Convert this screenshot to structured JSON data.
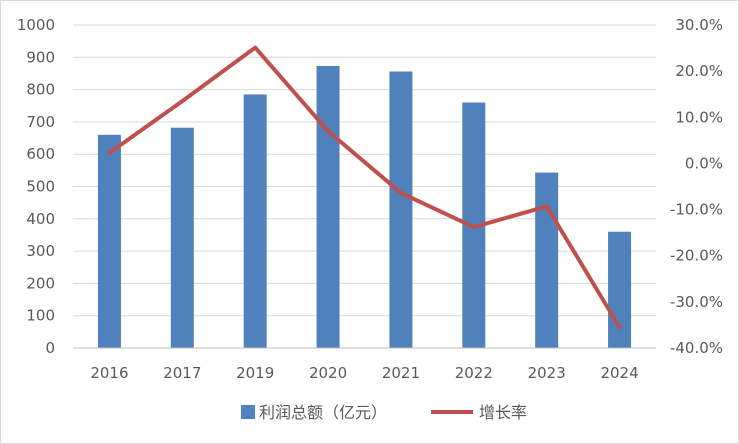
{
  "chart_data": {
    "type": "bar",
    "title": "",
    "xlabel": "",
    "ylabel": "",
    "y2label": "",
    "categories": [
      "2016",
      "2017",
      "2019",
      "2020",
      "2021",
      "2022",
      "2023",
      "2024"
    ],
    "series": [
      {
        "name": "利润总额（亿元）",
        "type": "bar",
        "axis": "left",
        "color": "#4f81bd",
        "values": [
          660,
          682,
          785,
          873,
          856,
          760,
          543,
          360
        ]
      },
      {
        "name": "增长率",
        "type": "line",
        "axis": "right",
        "color": "#c0504d",
        "values": [
          2.3,
          13.5,
          25.1,
          7.0,
          -6.4,
          -13.8,
          -9.3,
          -35.5
        ]
      }
    ],
    "ylim": [
      0,
      1000
    ],
    "yticks": [
      "0",
      "100",
      "200",
      "300",
      "400",
      "500",
      "600",
      "700",
      "800",
      "900",
      "1000"
    ],
    "y2lim": [
      -40,
      30
    ],
    "y2ticks": [
      "-40.0%",
      "-30.0%",
      "-20.0%",
      "-10.0%",
      "0.0%",
      "10.0%",
      "20.0%",
      "30.0%"
    ],
    "grid": true,
    "legend_position": "bottom"
  }
}
